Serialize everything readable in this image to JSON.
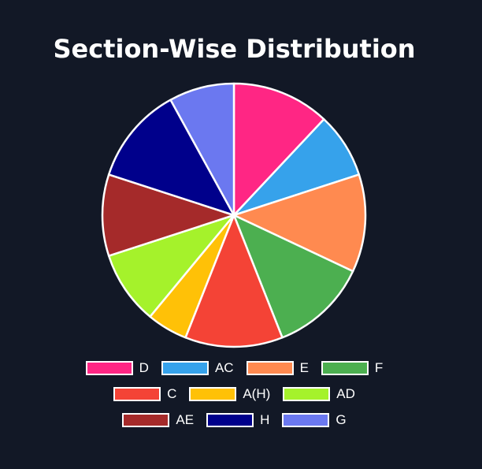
{
  "chart_data": {
    "type": "pie",
    "title": "Section-Wise Distribution",
    "categories": [
      "D",
      "AC",
      "E",
      "F",
      "C",
      "A(H)",
      "AD",
      "AE",
      "H",
      "G"
    ],
    "values": [
      12,
      8,
      12,
      12,
      12,
      5,
      9,
      10,
      12,
      8
    ],
    "colors": [
      "#ff2684",
      "#36a2eb",
      "#ff8a50",
      "#4caf50",
      "#f44336",
      "#ffc107",
      "#a5f22b",
      "#a52a2a",
      "#00008b",
      "#6b78f0"
    ],
    "legend_position": "bottom",
    "border_color": "#ffffff"
  }
}
